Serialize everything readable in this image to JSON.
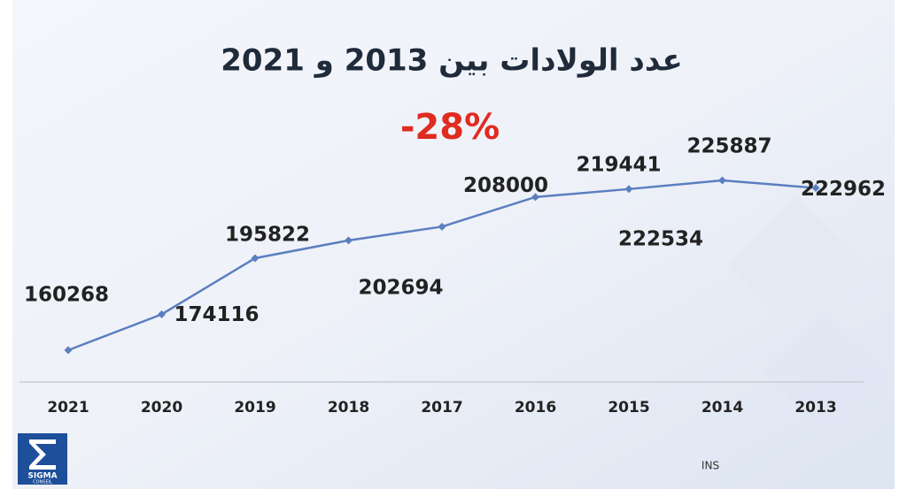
{
  "chart_data": {
    "type": "line",
    "title": "عدد الولادات بين 2013 و 2021",
    "subtitle": "-28%",
    "categories": [
      "2021",
      "2020",
      "2019",
      "2018",
      "2017",
      "2016",
      "2015",
      "2014",
      "2013"
    ],
    "series": [
      {
        "name": null,
        "color": "#5b7fbf",
        "values": [
          160268,
          174116,
          195822,
          202694,
          208000,
          219441,
          222534,
          225887,
          222962
        ]
      }
    ],
    "source": "INS",
    "logo": {
      "name": "SIGMA",
      "tagline": "CONSEIL"
    }
  }
}
